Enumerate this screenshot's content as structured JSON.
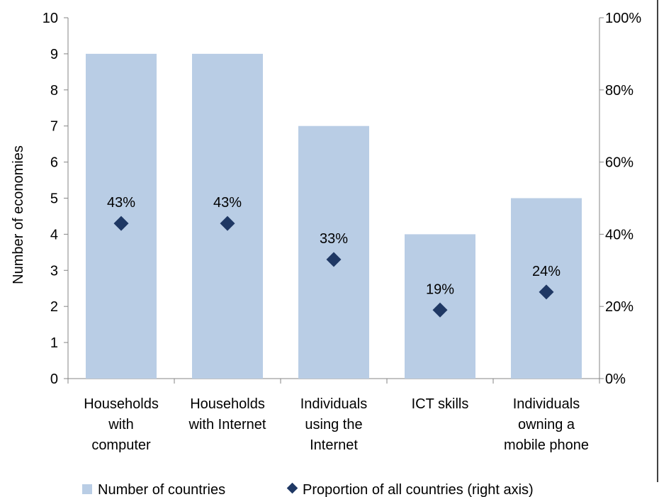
{
  "chart_data": {
    "type": "bar",
    "categories": [
      [
        "Households",
        "with",
        "computer"
      ],
      [
        "Households",
        "with Internet"
      ],
      [
        "Individuals",
        "using the",
        "Internet"
      ],
      [
        "ICT skills"
      ],
      [
        "Individuals",
        "owning a",
        "mobile phone"
      ]
    ],
    "series": [
      {
        "name": "Number of countries",
        "kind": "bar",
        "axis": "left",
        "color": "#b9cde5",
        "values": [
          9,
          9,
          7,
          4,
          5
        ]
      },
      {
        "name": "Proportion of all countries (right axis)",
        "kind": "scatter",
        "marker": "diamond",
        "axis": "right",
        "color": "#1f3864",
        "values": [
          0.43,
          0.43,
          0.33,
          0.19,
          0.24
        ],
        "data_labels": [
          "43%",
          "43%",
          "33%",
          "19%",
          "24%"
        ]
      }
    ],
    "ylabel": "Number of economies",
    "ylim": [
      0,
      10
    ],
    "yticks": [
      "0",
      "1",
      "2",
      "3",
      "4",
      "5",
      "6",
      "7",
      "8",
      "9",
      "10"
    ],
    "y2lim": [
      0,
      1
    ],
    "y2ticks": [
      "0%",
      "20%",
      "40%",
      "60%",
      "80%",
      "100%"
    ],
    "grid": false,
    "legend_position": "bottom"
  }
}
